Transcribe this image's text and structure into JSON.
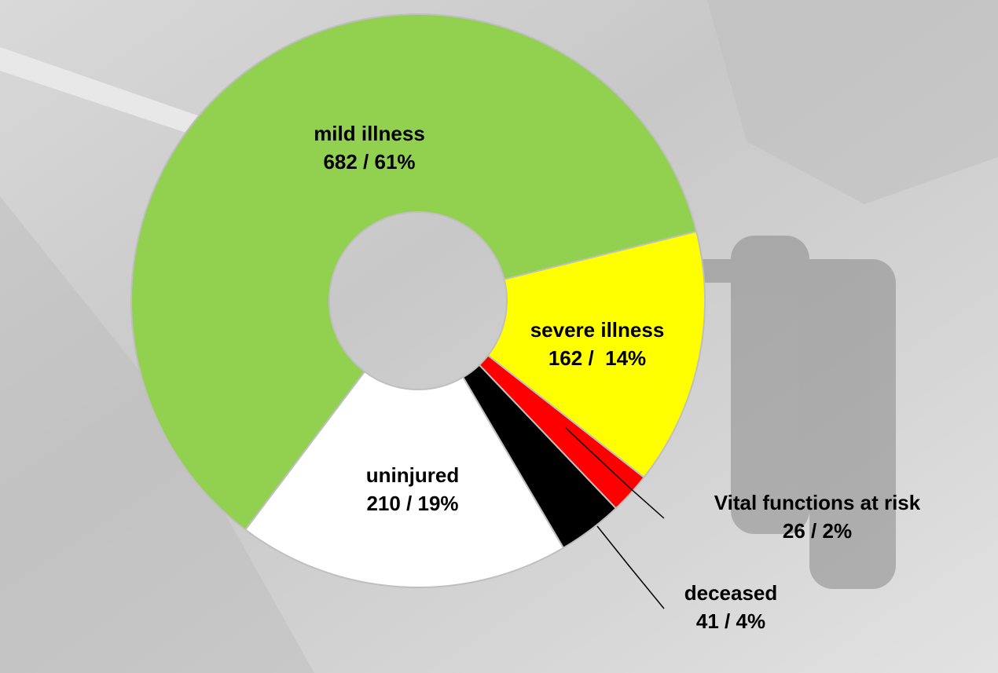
{
  "chart_data": {
    "type": "donut",
    "categories": [
      "mild illness",
      "severe illness",
      "Vital functions at risk",
      "deceased",
      "uninjured"
    ],
    "values": [
      682,
      162,
      26,
      41,
      210
    ],
    "value_labels": [
      "682 / 61%",
      "162 /  14%",
      "26 / 2%",
      "41 / 4%",
      "210 / 19%"
    ],
    "colors": [
      "#92d050",
      "#ffff00",
      "#ff0000",
      "#000000",
      "#ffffff"
    ]
  }
}
